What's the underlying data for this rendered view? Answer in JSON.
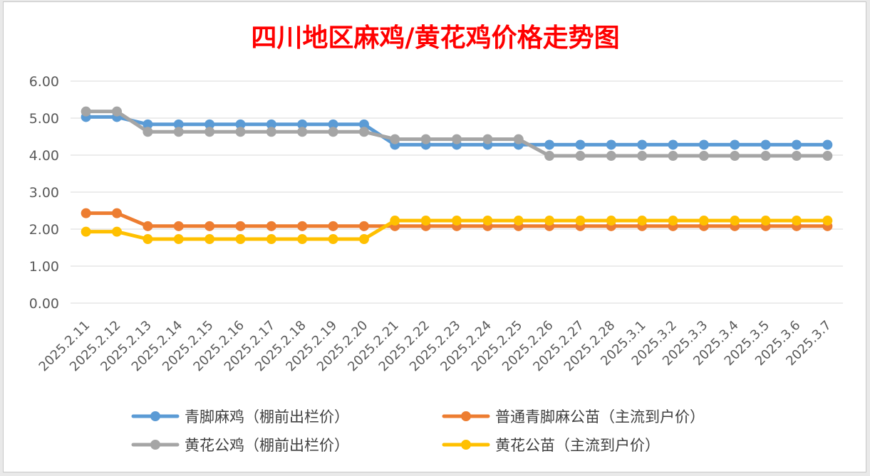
{
  "chart_data": {
    "type": "line",
    "title": "四川地区麻鸡/黄花鸡价格走势图",
    "title_color": "#ff0000",
    "xlabel": "",
    "ylabel": "",
    "ylim": [
      0,
      6
    ],
    "y_ticks": [
      "0.00",
      "1.00",
      "2.00",
      "3.00",
      "4.00",
      "5.00",
      "6.00"
    ],
    "grid": true,
    "legend_position": "bottom",
    "categories": [
      "2025.2.11",
      "2025.2.12",
      "2025.2.13",
      "2025.2.14",
      "2025.2.15",
      "2025.2.16",
      "2025.2.17",
      "2025.2.18",
      "2025.2.19",
      "2025.2.20",
      "2025.2.21",
      "2025.2.22",
      "2025.2.23",
      "2025.2.24",
      "2025.2.25",
      "2025.2.26",
      "2025.2.27",
      "2025.2.28",
      "2025.3.1",
      "2025.3.2",
      "2025.3.3",
      "2025.3.4",
      "2025.3.5",
      "2025.3.6",
      "2025.3.7"
    ],
    "series": [
      {
        "name": "青脚麻鸡（棚前出栏价）",
        "color": "#5b9bd5",
        "values": [
          5.03,
          5.03,
          4.83,
          4.83,
          4.83,
          4.83,
          4.83,
          4.83,
          4.83,
          4.83,
          4.28,
          4.28,
          4.28,
          4.28,
          4.28,
          4.28,
          4.28,
          4.28,
          4.28,
          4.28,
          4.28,
          4.28,
          4.28,
          4.28,
          4.28
        ]
      },
      {
        "name": "普通青脚麻公苗（主流到户价）",
        "color": "#ed7d31",
        "values": [
          2.43,
          2.43,
          2.08,
          2.08,
          2.08,
          2.08,
          2.08,
          2.08,
          2.08,
          2.08,
          2.08,
          2.08,
          2.08,
          2.08,
          2.08,
          2.08,
          2.08,
          2.08,
          2.08,
          2.08,
          2.08,
          2.08,
          2.08,
          2.08,
          2.08
        ]
      },
      {
        "name": "黄花公鸡（棚前出栏价）",
        "color": "#a5a5a5",
        "values": [
          5.18,
          5.18,
          4.63,
          4.63,
          4.63,
          4.63,
          4.63,
          4.63,
          4.63,
          4.63,
          4.43,
          4.43,
          4.43,
          4.43,
          4.43,
          3.98,
          3.98,
          3.98,
          3.98,
          3.98,
          3.98,
          3.98,
          3.98,
          3.98,
          3.98
        ]
      },
      {
        "name": "黄花公苗（主流到户价）",
        "color": "#ffc000",
        "values": [
          1.93,
          1.93,
          1.73,
          1.73,
          1.73,
          1.73,
          1.73,
          1.73,
          1.73,
          1.73,
          2.23,
          2.23,
          2.23,
          2.23,
          2.23,
          2.23,
          2.23,
          2.23,
          2.23,
          2.23,
          2.23,
          2.23,
          2.23,
          2.23,
          2.23
        ]
      }
    ]
  }
}
